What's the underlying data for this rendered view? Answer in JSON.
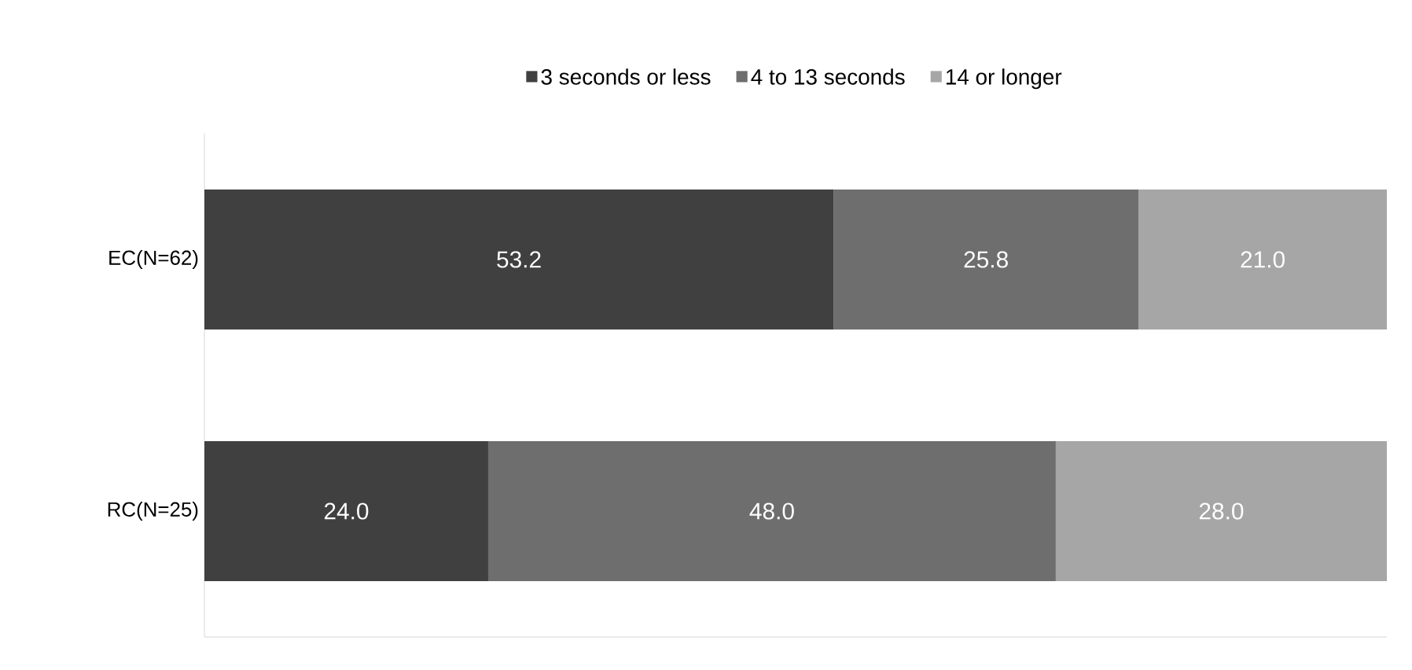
{
  "chart_data": {
    "type": "bar",
    "orientation": "horizontal",
    "stacked": true,
    "categories": [
      "EC(N=62)",
      "RC(N=25)"
    ],
    "legend": "top",
    "series": [
      {
        "name": "3 seconds or less",
        "color": "#404040",
        "values": [
          53.2,
          24.0
        ],
        "value_labels": [
          "53.2",
          "24.0"
        ]
      },
      {
        "name": "4 to 13 seconds",
        "color": "#6e6e6e",
        "values": [
          25.8,
          48.0
        ],
        "value_labels": [
          "25.8",
          "48.0"
        ]
      },
      {
        "name": "14 or longer",
        "color": "#a6a6a6",
        "values": [
          21.0,
          28.0
        ],
        "value_labels": [
          "21.0",
          "28.0"
        ]
      }
    ]
  }
}
